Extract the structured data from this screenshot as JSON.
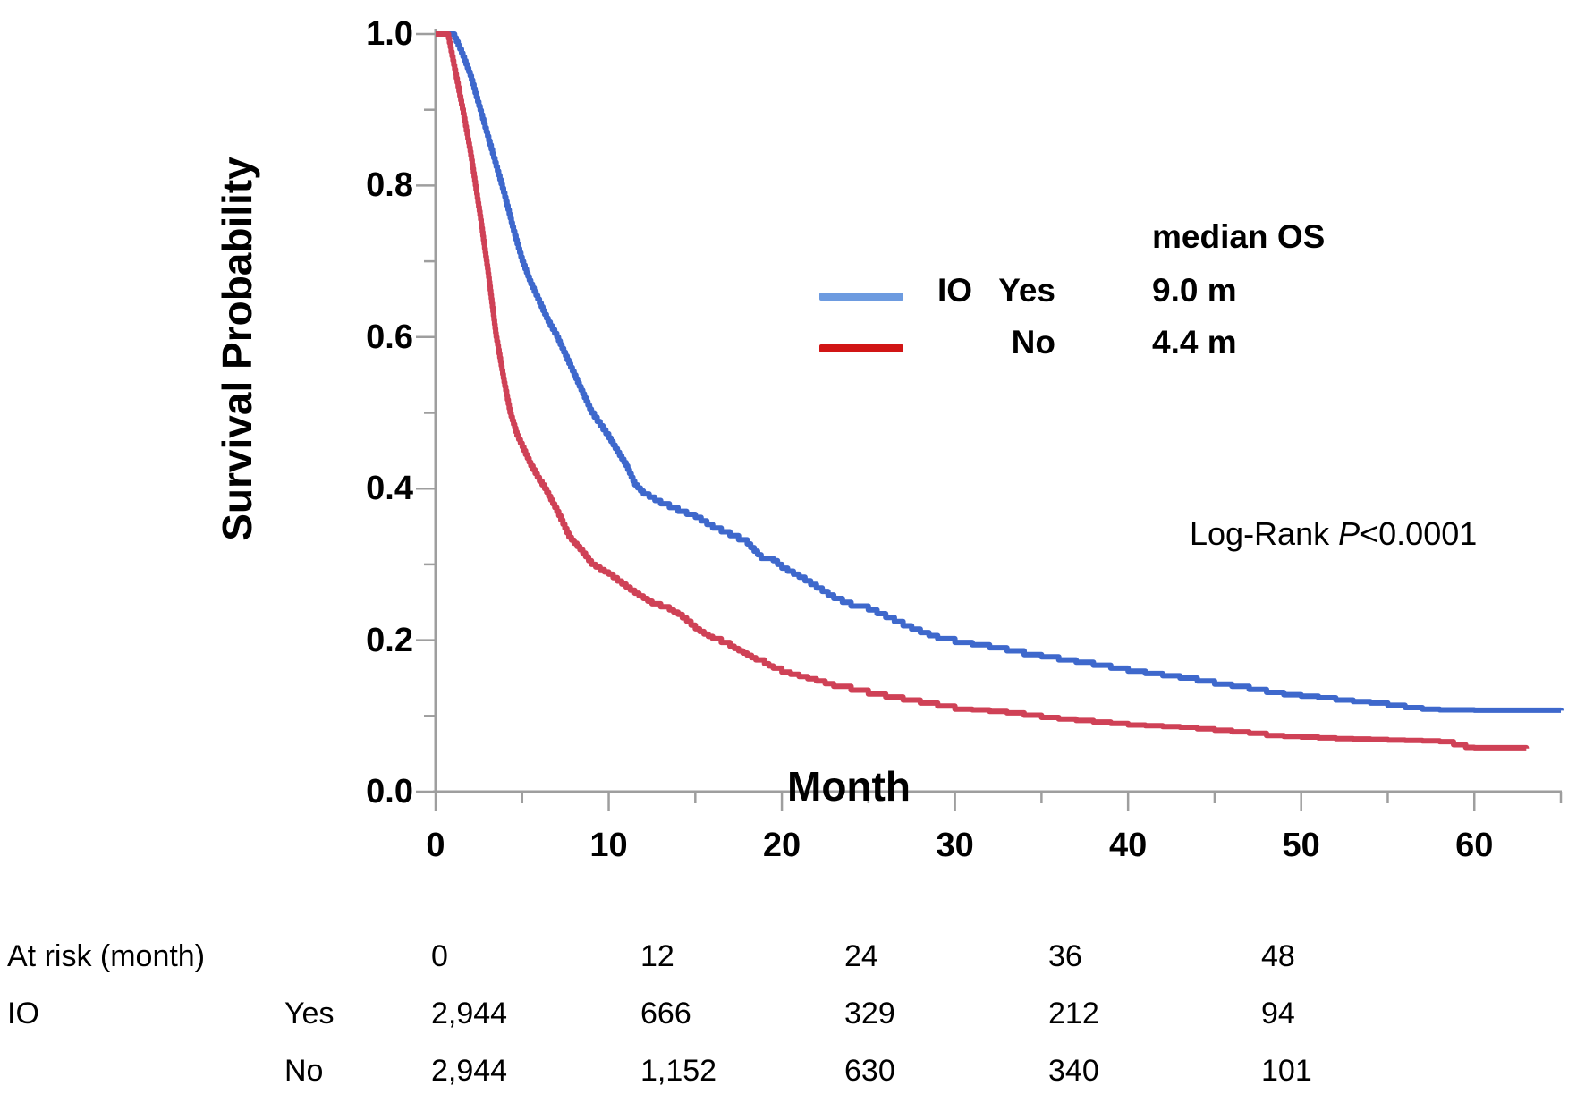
{
  "chart_data": {
    "type": "line",
    "subtype": "kaplan-meier-step",
    "title": "",
    "xlabel": "Month",
    "ylabel": "Survival Probability",
    "xlim": [
      0,
      65
    ],
    "ylim": [
      0.0,
      1.0
    ],
    "grid": false,
    "colors": {
      "axis": "#9e9e9e"
    },
    "x_ticks": [
      {
        "v": 0,
        "major": true,
        "label": "0"
      },
      {
        "v": 5,
        "major": false
      },
      {
        "v": 10,
        "major": true,
        "label": "10"
      },
      {
        "v": 15,
        "major": false
      },
      {
        "v": 20,
        "major": true,
        "label": "20"
      },
      {
        "v": 25,
        "major": false
      },
      {
        "v": 30,
        "major": true,
        "label": "30"
      },
      {
        "v": 35,
        "major": false
      },
      {
        "v": 40,
        "major": true,
        "label": "40"
      },
      {
        "v": 45,
        "major": false
      },
      {
        "v": 50,
        "major": true,
        "label": "50"
      },
      {
        "v": 55,
        "major": false
      },
      {
        "v": 60,
        "major": true,
        "label": "60"
      },
      {
        "v": 65,
        "major": false
      }
    ],
    "y_ticks": [
      {
        "v": 0.0,
        "major": true,
        "label": "0.0"
      },
      {
        "v": 0.1,
        "major": false
      },
      {
        "v": 0.2,
        "major": true,
        "label": "0.2"
      },
      {
        "v": 0.3,
        "major": false
      },
      {
        "v": 0.4,
        "major": true,
        "label": "0.4"
      },
      {
        "v": 0.5,
        "major": false
      },
      {
        "v": 0.6,
        "major": true,
        "label": "0.6"
      },
      {
        "v": 0.7,
        "major": false
      },
      {
        "v": 0.8,
        "major": true,
        "label": "0.8"
      },
      {
        "v": 0.9,
        "major": false
      },
      {
        "v": 1.0,
        "major": true,
        "label": "1.0"
      }
    ],
    "legend": {
      "header": "median OS",
      "rows": [
        {
          "group_prefix": "IO",
          "label": "Yes",
          "median": "9.0 m",
          "swatch_color": "#6d9be0",
          "series": "IO Yes"
        },
        {
          "group_prefix": "",
          "label": "No",
          "median": "4.4 m",
          "swatch_color": "#d11515",
          "series": "No"
        }
      ]
    },
    "annotation": {
      "prefix": "Log-Rank ",
      "italic": "P",
      "suffix": "<0.0001"
    },
    "series": [
      {
        "name": "IO Yes",
        "color": "#3e68cc",
        "median_months": 9.0,
        "points": [
          [
            0,
            1.0
          ],
          [
            1,
            1.0
          ],
          [
            1.5,
            0.975
          ],
          [
            2,
            0.945
          ],
          [
            2.5,
            0.905
          ],
          [
            3,
            0.865
          ],
          [
            3.5,
            0.825
          ],
          [
            4,
            0.785
          ],
          [
            4.5,
            0.74
          ],
          [
            5,
            0.7
          ],
          [
            5.5,
            0.67
          ],
          [
            6,
            0.645
          ],
          [
            6.5,
            0.62
          ],
          [
            7,
            0.6
          ],
          [
            7.5,
            0.575
          ],
          [
            8,
            0.55
          ],
          [
            8.5,
            0.525
          ],
          [
            9,
            0.5
          ],
          [
            9.5,
            0.483
          ],
          [
            10,
            0.467
          ],
          [
            10.5,
            0.448
          ],
          [
            11,
            0.43
          ],
          [
            11.5,
            0.405
          ],
          [
            12,
            0.393
          ],
          [
            13,
            0.38
          ],
          [
            14,
            0.37
          ],
          [
            15,
            0.362
          ],
          [
            16,
            0.348
          ],
          [
            17,
            0.338
          ],
          [
            18,
            0.327
          ],
          [
            18.8,
            0.308
          ],
          [
            19.5,
            0.305
          ],
          [
            20,
            0.295
          ],
          [
            21,
            0.283
          ],
          [
            22,
            0.269
          ],
          [
            23,
            0.255
          ],
          [
            24,
            0.245
          ],
          [
            25,
            0.24
          ],
          [
            26,
            0.23
          ],
          [
            27,
            0.219
          ],
          [
            28,
            0.21
          ],
          [
            29,
            0.202
          ],
          [
            30,
            0.197
          ],
          [
            31,
            0.194
          ],
          [
            32,
            0.19
          ],
          [
            33,
            0.186
          ],
          [
            34,
            0.181
          ],
          [
            35,
            0.178
          ],
          [
            36,
            0.174
          ],
          [
            37,
            0.171
          ],
          [
            38,
            0.167
          ],
          [
            39,
            0.163
          ],
          [
            40,
            0.159
          ],
          [
            41,
            0.156
          ],
          [
            42,
            0.153
          ],
          [
            43,
            0.15
          ],
          [
            44,
            0.146
          ],
          [
            45,
            0.142
          ],
          [
            46,
            0.139
          ],
          [
            47,
            0.135
          ],
          [
            48,
            0.131
          ],
          [
            49,
            0.128
          ],
          [
            50,
            0.126
          ],
          [
            51,
            0.124
          ],
          [
            52,
            0.121
          ],
          [
            53,
            0.119
          ],
          [
            54,
            0.117
          ],
          [
            55,
            0.114
          ],
          [
            56,
            0.111
          ],
          [
            57,
            0.109
          ],
          [
            58,
            0.108
          ],
          [
            60,
            0.1075
          ],
          [
            65,
            0.107
          ]
        ]
      },
      {
        "name": "No",
        "color": "#cf4156",
        "median_months": 4.4,
        "points": [
          [
            0,
            1.0
          ],
          [
            0.7,
            1.0
          ],
          [
            1,
            0.965
          ],
          [
            1.3,
            0.93
          ],
          [
            1.6,
            0.895
          ],
          [
            2,
            0.845
          ],
          [
            2.3,
            0.8
          ],
          [
            2.6,
            0.755
          ],
          [
            3,
            0.69
          ],
          [
            3.5,
            0.6
          ],
          [
            4,
            0.535
          ],
          [
            4.3,
            0.5
          ],
          [
            4.7,
            0.47
          ],
          [
            5,
            0.455
          ],
          [
            5.5,
            0.43
          ],
          [
            6,
            0.41
          ],
          [
            6.3,
            0.4
          ],
          [
            7,
            0.37
          ],
          [
            7.7,
            0.336
          ],
          [
            8,
            0.328
          ],
          [
            8.5,
            0.315
          ],
          [
            9,
            0.3
          ],
          [
            9.5,
            0.293
          ],
          [
            10,
            0.287
          ],
          [
            10.5,
            0.278
          ],
          [
            11,
            0.27
          ],
          [
            11.5,
            0.262
          ],
          [
            12,
            0.255
          ],
          [
            12.5,
            0.248
          ],
          [
            13,
            0.244
          ],
          [
            13.5,
            0.24
          ],
          [
            14,
            0.234
          ],
          [
            14.5,
            0.225
          ],
          [
            15,
            0.215
          ],
          [
            15.5,
            0.208
          ],
          [
            16,
            0.202
          ],
          [
            16.5,
            0.197
          ],
          [
            17,
            0.192
          ],
          [
            17.5,
            0.186
          ],
          [
            18,
            0.18
          ],
          [
            18.5,
            0.174
          ],
          [
            19,
            0.169
          ],
          [
            19.5,
            0.163
          ],
          [
            20,
            0.158
          ],
          [
            21,
            0.152
          ],
          [
            22,
            0.146
          ],
          [
            23,
            0.139
          ],
          [
            24,
            0.134
          ],
          [
            25,
            0.129
          ],
          [
            26,
            0.125
          ],
          [
            27,
            0.121
          ],
          [
            28,
            0.117
          ],
          [
            29,
            0.113
          ],
          [
            30,
            0.109
          ],
          [
            31,
            0.108
          ],
          [
            32,
            0.106
          ],
          [
            33,
            0.104
          ],
          [
            34,
            0.101
          ],
          [
            35,
            0.098
          ],
          [
            36,
            0.096
          ],
          [
            37,
            0.094
          ],
          [
            38,
            0.092
          ],
          [
            39,
            0.09
          ],
          [
            40,
            0.088
          ],
          [
            41,
            0.087
          ],
          [
            42,
            0.086
          ],
          [
            43,
            0.085
          ],
          [
            44,
            0.083
          ],
          [
            45,
            0.081
          ],
          [
            46,
            0.079
          ],
          [
            47,
            0.077
          ],
          [
            48,
            0.074
          ],
          [
            49,
            0.073
          ],
          [
            50,
            0.072
          ],
          [
            51,
            0.071
          ],
          [
            52,
            0.07
          ],
          [
            53,
            0.0695
          ],
          [
            54,
            0.069
          ],
          [
            55,
            0.068
          ],
          [
            56,
            0.0675
          ],
          [
            57,
            0.067
          ],
          [
            58,
            0.066
          ],
          [
            58.8,
            0.062
          ],
          [
            59.5,
            0.0585
          ],
          [
            60,
            0.058
          ],
          [
            63,
            0.057
          ]
        ]
      }
    ]
  },
  "at_risk": {
    "row_header": "At risk (month)",
    "group_header": "IO",
    "months": [
      "0",
      "12",
      "24",
      "36",
      "48"
    ],
    "rows": [
      {
        "group": "Yes",
        "values": [
          "2,944",
          "666",
          "329",
          "212",
          "94"
        ]
      },
      {
        "group": "No",
        "values": [
          "2,944",
          "1,152",
          "630",
          "340",
          "101"
        ]
      }
    ]
  }
}
